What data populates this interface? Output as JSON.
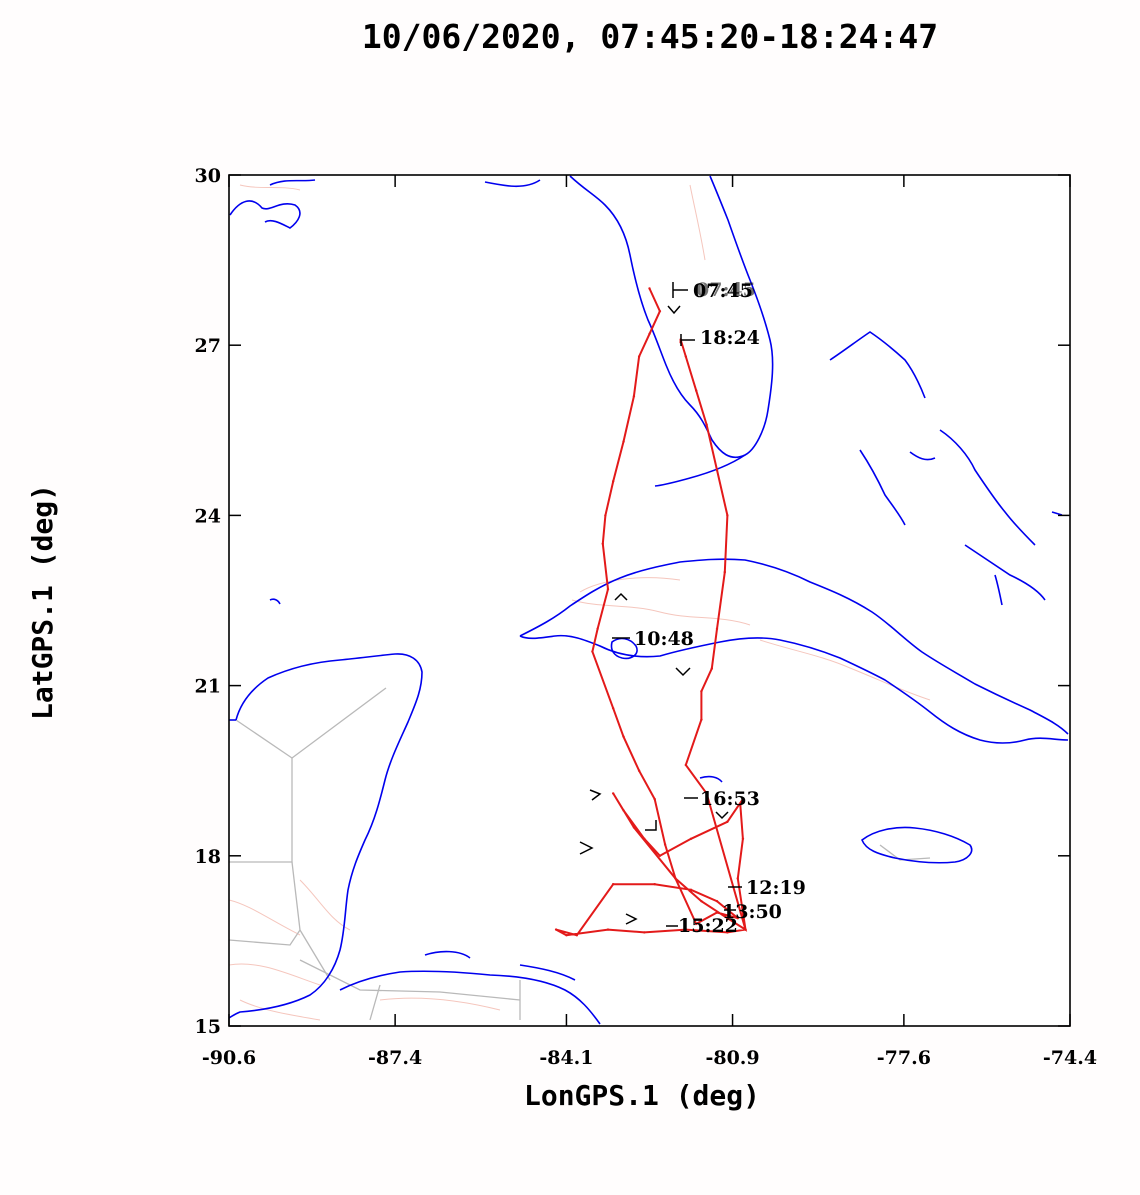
{
  "colors": {
    "coast": "#0000ee",
    "borders": "#b9b9b9",
    "rivers": "#f5c6bd",
    "track": "#e31a1a",
    "frame": "#000000",
    "marker": "#000000"
  },
  "chart_data": {
    "type": "line",
    "title": "10/06/2020, 07:45:20-18:24:47",
    "xlabel": "LonGPS.1 (deg)",
    "ylabel": "LatGPS.1 (deg)",
    "xlim": [
      -90.6,
      -74.4
    ],
    "ylim": [
      15,
      30
    ],
    "xticks": [
      "-90.6",
      "-87.4",
      "-84.1",
      "-80.9",
      "-77.6",
      "-74.4"
    ],
    "yticks": [
      "15",
      "18",
      "21",
      "24",
      "27",
      "30"
    ],
    "grid": false,
    "series": [
      {
        "x": [
          -82.5,
          -82.3,
          -82.5,
          -82.7,
          -82.8,
          -83.0,
          -83.2,
          -83.35,
          -83.4,
          -83.3,
          -83.5,
          -83.6,
          -83.2,
          -83.0,
          -82.7,
          -82.4,
          -82.2,
          -82.0,
          -81.6,
          -81.2,
          -80.8,
          -81.2,
          -81.7,
          -82.4,
          -83.2,
          -83.9,
          -84.3,
          -84.1,
          -83.3,
          -82.6,
          -81.8,
          -81.0,
          -80.65,
          -80.8,
          -80.7,
          -80.75,
          -80.7,
          -81.0,
          -81.7,
          -82.3,
          -82.6,
          -83.0,
          -83.2,
          -82.8,
          -82.0,
          -81.5,
          -81.0,
          -80.65,
          -81.4,
          -81.8,
          -81.5,
          -81.5,
          -81.3,
          -81.2,
          -81.05,
          -81.0,
          -81.2,
          -81.4,
          -81.6,
          -81.8,
          -81.9,
          -81.9
        ],
        "y": [
          28.0,
          27.6,
          27.2,
          26.8,
          26.1,
          25.3,
          24.6,
          24.0,
          23.5,
          22.7,
          22.0,
          21.6,
          20.6,
          20.1,
          19.5,
          19.0,
          18.2,
          17.6,
          16.8,
          17.0,
          16.9,
          17.2,
          17.4,
          17.5,
          17.5,
          16.6,
          16.7,
          16.6,
          16.7,
          16.65,
          16.7,
          16.65,
          16.7,
          17.6,
          18.3,
          18.9,
          19.0,
          18.6,
          18.3,
          18.0,
          18.3,
          18.8,
          19.1,
          18.5,
          17.6,
          17.2,
          16.9,
          16.7,
          19.1,
          19.6,
          20.4,
          20.9,
          21.3,
          22.0,
          23.0,
          24.0,
          24.8,
          25.6,
          26.2,
          26.8,
          27.1,
          27.05
        ]
      }
    ],
    "annotations": [
      "07:45",
      "18:24",
      "10:48",
      "12:19",
      "13:50",
      "15:22",
      "16:53"
    ]
  }
}
